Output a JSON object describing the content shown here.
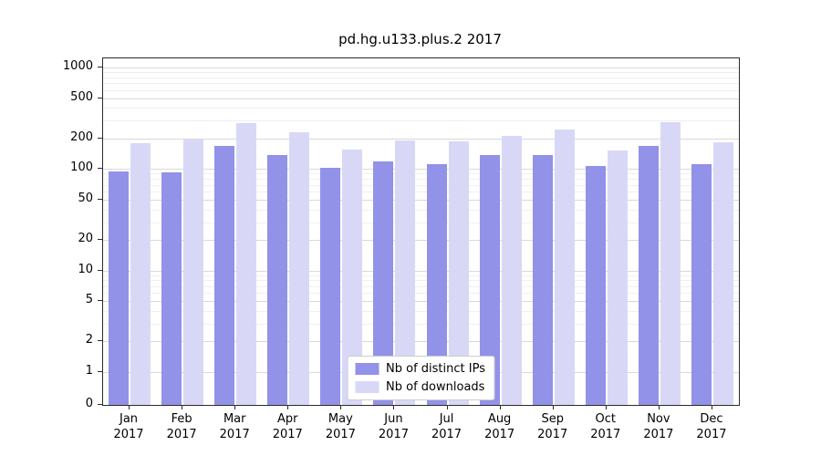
{
  "title": "pd.hg.u133.plus.2 2017",
  "colors": {
    "ips": "#9292e9",
    "downloads": "#d8d8f6",
    "grid_major": "#d9d9d9",
    "grid_minor": "#f0f0f0",
    "axis": "#2b2b2b"
  },
  "legend": {
    "items": [
      {
        "label": "Nb of distinct IPs",
        "series": "ips"
      },
      {
        "label": "Nb of downloads",
        "series": "downloads"
      }
    ]
  },
  "chart_data": {
    "type": "bar",
    "title": "pd.hg.u133.plus.2 2017",
    "categories": [
      "Jan",
      "Feb",
      "Mar",
      "Apr",
      "May",
      "Jun",
      "Jul",
      "Aug",
      "Sep",
      "Oct",
      "Nov",
      "Dec"
    ],
    "year": "2017",
    "series": [
      {
        "name": "Nb of distinct IPs",
        "values": [
          95,
          92,
          170,
          138,
          103,
          120,
          112,
          137,
          138,
          108,
          168,
          112
        ]
      },
      {
        "name": "Nb of downloads",
        "values": [
          180,
          195,
          285,
          232,
          155,
          190,
          186,
          212,
          243,
          152,
          287,
          182
        ]
      }
    ],
    "xlabel": "",
    "ylabel": "",
    "yscale": "symlog",
    "yticks": [
      0,
      1,
      2,
      5,
      10,
      20,
      50,
      100,
      200,
      500,
      1000
    ],
    "ylim": [
      0,
      1300
    ],
    "grid": true,
    "legend_position": "lower center"
  }
}
